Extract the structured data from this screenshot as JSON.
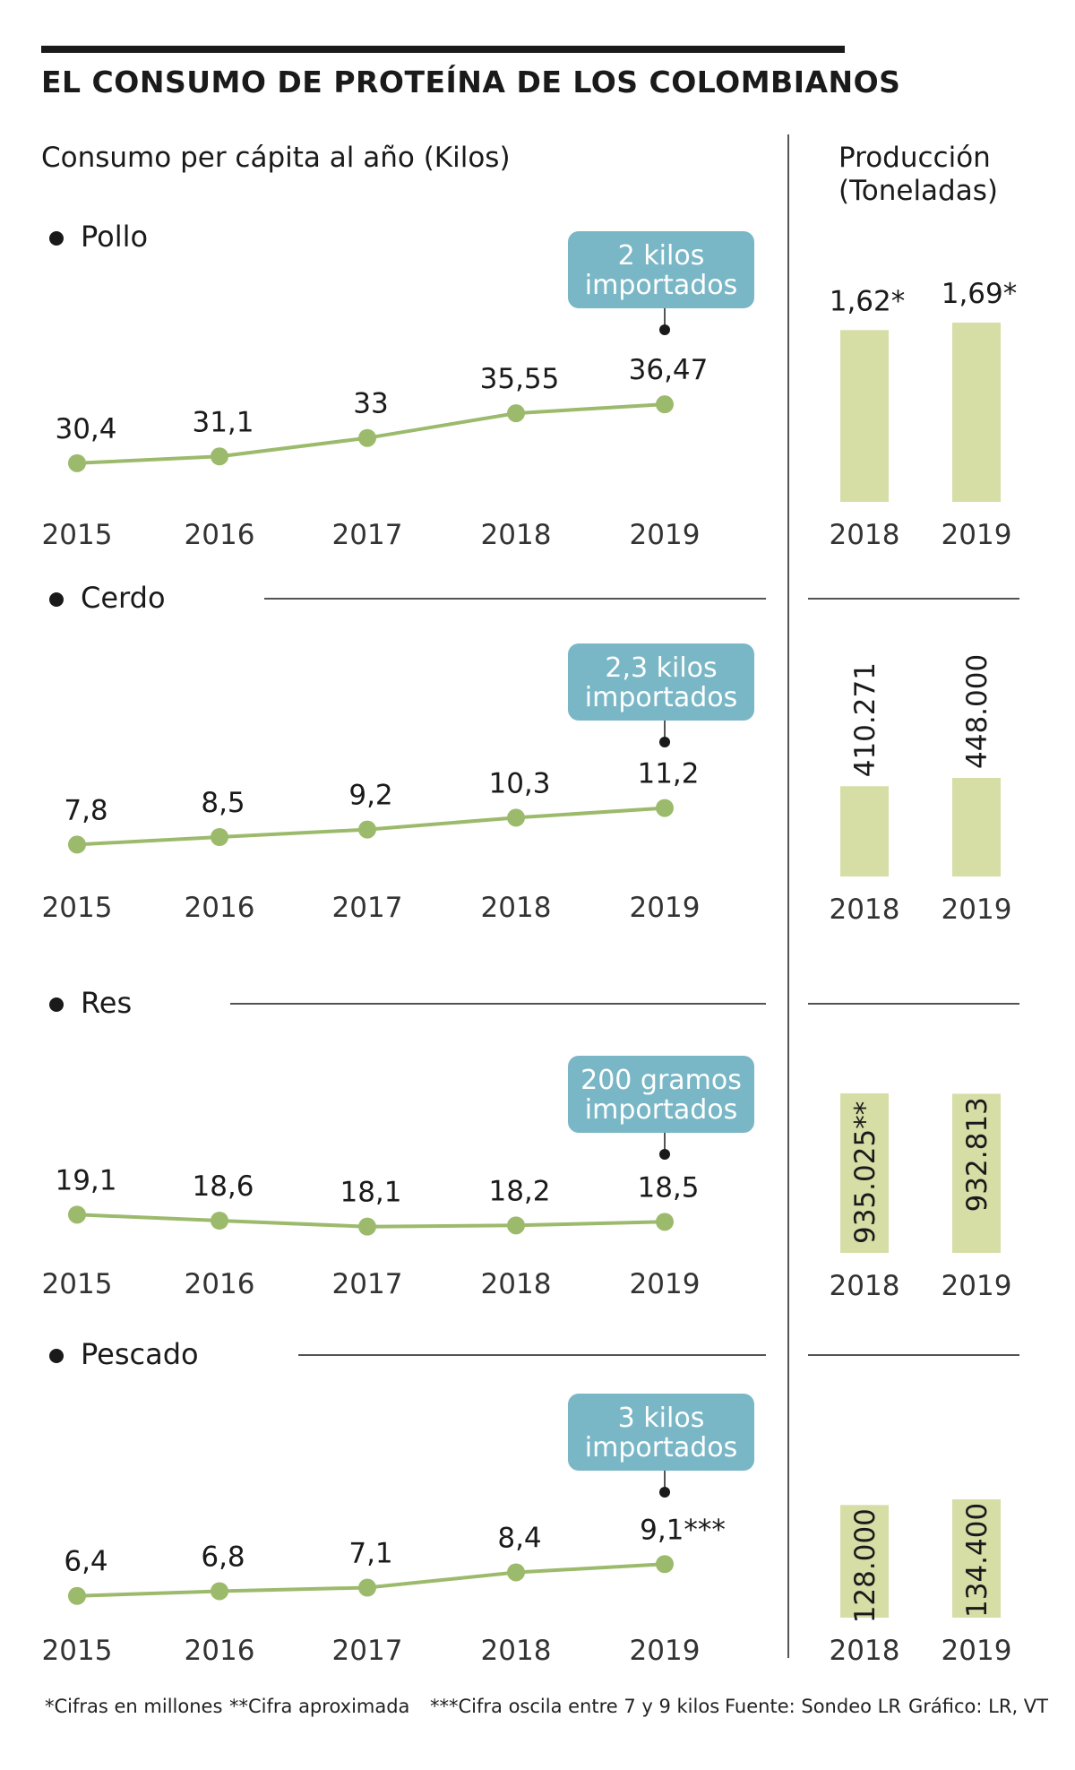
{
  "header": {
    "title": "EL CONSUMO DE PROTEÍNA DE LOS COLOMBIANOS",
    "subtitle": "Consumo per cápita al año (Kilos)",
    "production_title_line1": "Producción",
    "production_title_line2": "(Toneladas)"
  },
  "colors": {
    "line": "#9cba6c",
    "bar": "#d6dea6",
    "callout": "#7ab7c6",
    "rule": "#1a1a1a"
  },
  "chart_data": [
    {
      "type": "line",
      "name": "Pollo",
      "x": [
        "2015",
        "2016",
        "2017",
        "2018",
        "2019"
      ],
      "values": [
        30.4,
        31.1,
        33,
        35.55,
        36.47
      ],
      "labels": [
        "30,4",
        "31,1",
        "33",
        "35,55",
        "36,47"
      ],
      "callout_line1": "2 kilos",
      "callout_line2": "importados"
    },
    {
      "type": "bar",
      "name": "Producción Pollo",
      "categories": [
        "2018",
        "2019"
      ],
      "values": [
        1.62,
        1.69
      ],
      "labels": [
        "1,62*",
        "1,69*"
      ],
      "label_orientation": "horizontal"
    },
    {
      "type": "line",
      "name": "Cerdo",
      "x": [
        "2015",
        "2016",
        "2017",
        "2018",
        "2019"
      ],
      "values": [
        7.8,
        8.5,
        9.2,
        10.3,
        11.2
      ],
      "labels": [
        "7,8",
        "8,5",
        "9,2",
        "10,3",
        "11,2"
      ],
      "callout_line1": "2,3 kilos",
      "callout_line2": "importados"
    },
    {
      "type": "bar",
      "name": "Producción Cerdo",
      "categories": [
        "2018",
        "2019"
      ],
      "values": [
        410271,
        448000
      ],
      "labels": [
        "410.271",
        "448.000"
      ],
      "label_orientation": "vertical"
    },
    {
      "type": "line",
      "name": "Res",
      "x": [
        "2015",
        "2016",
        "2017",
        "2018",
        "2019"
      ],
      "values": [
        19.1,
        18.6,
        18.1,
        18.2,
        18.5
      ],
      "labels": [
        "19,1",
        "18,6",
        "18,1",
        "18,2",
        "18,5"
      ],
      "callout_line1": "200 gramos",
      "callout_line2": "importados"
    },
    {
      "type": "bar",
      "name": "Producción Res",
      "categories": [
        "2018",
        "2019"
      ],
      "values": [
        935025,
        932813
      ],
      "labels": [
        "935.025**",
        "932.813"
      ],
      "label_orientation": "vertical"
    },
    {
      "type": "line",
      "name": "Pescado",
      "x": [
        "2015",
        "2016",
        "2017",
        "2018",
        "2019"
      ],
      "values": [
        6.4,
        6.8,
        7.1,
        8.4,
        9.1
      ],
      "labels": [
        "6,4",
        "6,8",
        "7,1",
        "8,4",
        "9,1***"
      ],
      "callout_line1": "3 kilos",
      "callout_line2": "importados"
    },
    {
      "type": "bar",
      "name": "Producción Pescado",
      "categories": [
        "2018",
        "2019"
      ],
      "values": [
        128000,
        134400
      ],
      "labels": [
        "128.000",
        "134.400"
      ],
      "label_orientation": "vertical"
    }
  ],
  "footer": {
    "note1": "*Cifras en millones",
    "note2": "**Cifra aproximada",
    "note3": "***Cifra oscila entre 7 y 9 kilos",
    "source": "Fuente: Sondeo LR",
    "credit": "Gráfico: LR, VT"
  }
}
